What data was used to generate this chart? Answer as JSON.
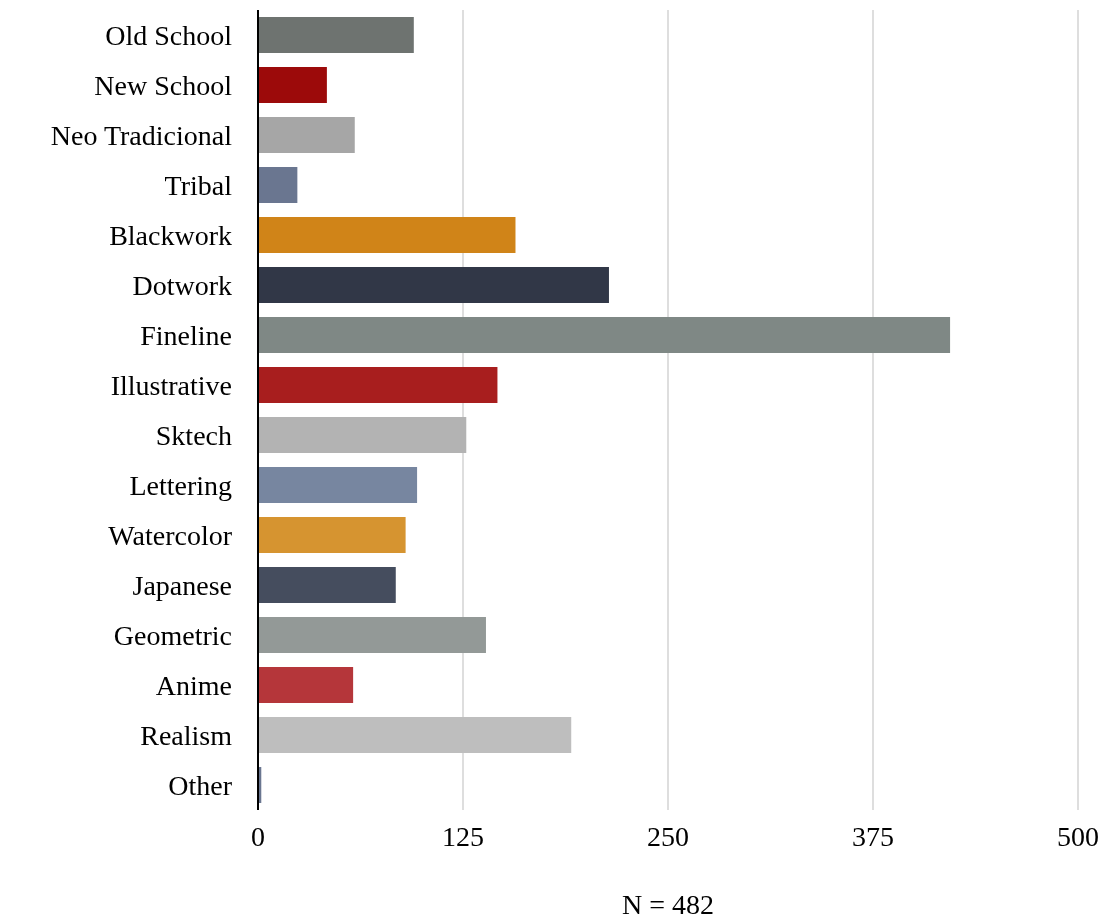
{
  "chart_data": {
    "type": "bar",
    "orientation": "horizontal",
    "categories": [
      "Old School",
      "New School",
      "Neo Tradicional",
      "Tribal",
      "Blackwork",
      "Dotwork",
      "Fineline",
      "Illustrative",
      "Sktech",
      "Lettering",
      "Watercolor",
      "Japanese",
      "Geometric",
      "Anime",
      "Realism",
      "Other"
    ],
    "values": [
      95,
      42,
      59,
      24,
      157,
      214,
      422,
      146,
      127,
      97,
      90,
      84,
      139,
      58,
      191,
      2
    ],
    "colors": [
      "#6e7370",
      "#9c0a0a",
      "#a6a6a6",
      "#6a7690",
      "#d08418",
      "#313747",
      "#7f8885",
      "#a81e1e",
      "#b3b3b3",
      "#7786a0",
      "#d69430",
      "#454d5e",
      "#939997",
      "#b5363a",
      "#bebebe",
      "#6a7690"
    ],
    "xlim": [
      0,
      500
    ],
    "xticks": [
      0,
      125,
      250,
      375,
      500
    ],
    "grid": "x",
    "annotations": [
      "N = 482"
    ]
  }
}
